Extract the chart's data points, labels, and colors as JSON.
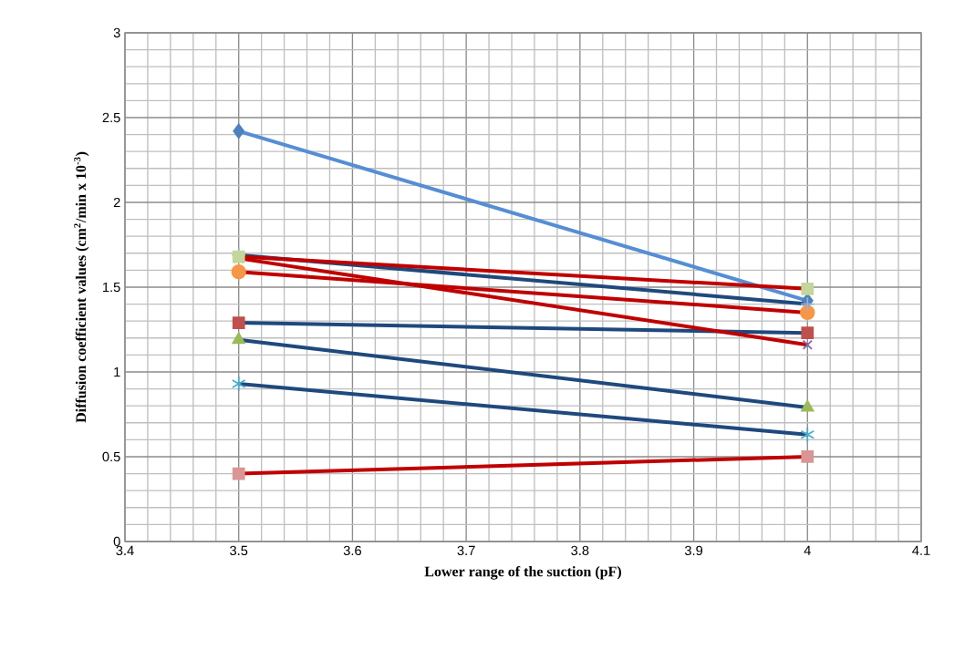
{
  "chart_data": {
    "type": "line",
    "xlabel": "Lower range of the suction (pF)",
    "ylabel": "Diffusion coefficient values (cm$^{2}$/min x 10$^{-3}$)",
    "x": [
      3.5,
      4.0
    ],
    "series": [
      {
        "color": "#558ed5",
        "marker": "diamond",
        "colors": [
          "#4f81bd",
          "#4f81bd"
        ],
        "values": [
          2.42,
          1.42
        ]
      },
      {
        "color": "#1f497d",
        "marker": "square",
        "colors": [
          "#c0504d",
          "#c0504d"
        ],
        "values": [
          1.29,
          1.23
        ]
      },
      {
        "color": "#1f497d",
        "marker": "triangle",
        "colors": [
          "#9bbb59",
          "#9bbb59"
        ],
        "values": [
          1.19,
          0.79
        ]
      },
      {
        "color": "#c00000",
        "marker": "cross",
        "colors": [
          "#8064a2",
          "#8064a2"
        ],
        "values": [
          1.67,
          1.16
        ]
      },
      {
        "color": "#1f497d",
        "marker": "cross",
        "colors": [
          "#4bacc6",
          "#4bacc6"
        ],
        "values": [
          0.93,
          0.63
        ]
      },
      {
        "color": "#c00000",
        "marker": "circle",
        "colors": [
          "#f79646",
          "#f79646"
        ],
        "values": [
          1.59,
          1.35
        ]
      },
      {
        "color": "#1f497d",
        "marker": "plus",
        "colors": [
          "#95b3d7",
          "#95b3d7"
        ],
        "values": [
          1.69,
          1.4
        ]
      },
      {
        "color": "#c00000",
        "marker": "square",
        "colors": [
          "#c3d69b",
          "#c3d69b"
        ],
        "values": [
          1.68,
          1.49
        ]
      },
      {
        "color": "#c00000",
        "marker": "square",
        "colors": [
          "#d99694",
          "#d99694"
        ],
        "values": [
          0.4,
          0.5
        ]
      }
    ],
    "xlim": [
      3.4,
      4.1
    ],
    "xticks": [
      3.4,
      3.5,
      3.6,
      3.7,
      3.8,
      3.9,
      4,
      4.1
    ],
    "ylim": [
      0,
      3
    ],
    "yticks": [
      0,
      0.5,
      1,
      1.5,
      2,
      2.5,
      3
    ],
    "grid": true
  }
}
